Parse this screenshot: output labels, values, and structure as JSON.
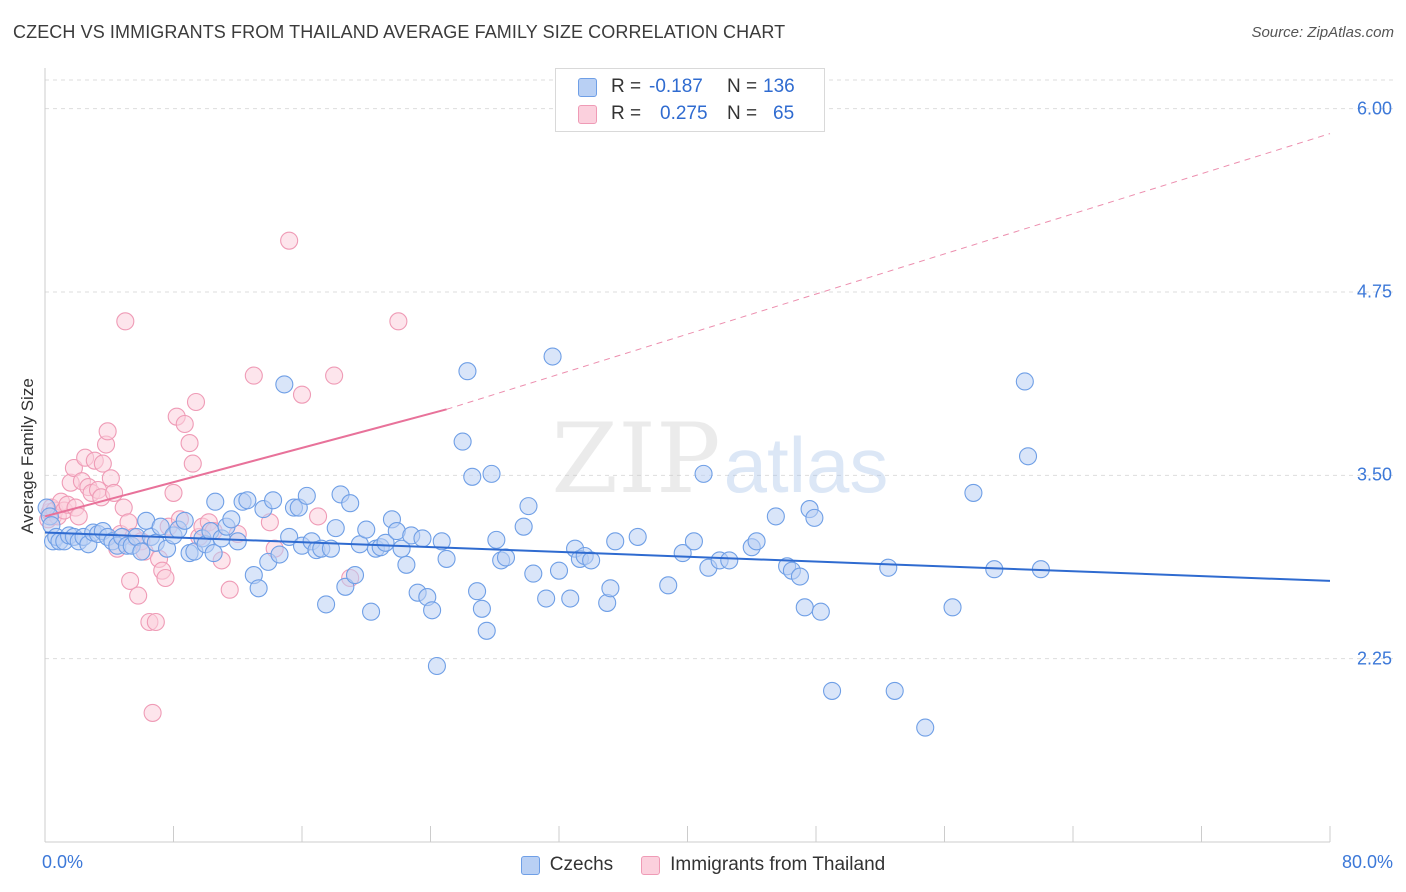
{
  "title": "CZECH VS IMMIGRANTS FROM THAILAND AVERAGE FAMILY SIZE CORRELATION CHART",
  "source": "Source: ZipAtlas.com",
  "watermark": {
    "zip": "ZIP",
    "atlas": "atlas"
  },
  "legend_top": {
    "r_label": "R =",
    "n_label": "N =",
    "czechs": {
      "r": "-0.187",
      "n": "136"
    },
    "thailand": {
      "r": "0.275",
      "n": "65"
    }
  },
  "legend_bottom": {
    "czechs": "Czechs",
    "thailand": "Immigrants from Thailand"
  },
  "x_axis": {
    "min_label": "0.0%",
    "max_label": "80.0%"
  },
  "y_axis_label": "Average Family Size",
  "colors": {
    "blue": "#6f9fe6",
    "blue_fill": "#b9d0f4",
    "pink": "#ef9bb6",
    "pink_fill": "#fbd0dd",
    "blue_line": "#2f6bd0",
    "pink_line": "#e8729a",
    "accent": "#3c78d8"
  },
  "chart_data": {
    "type": "scatter",
    "xlim": [
      0,
      80
    ],
    "ylim": [
      1.0,
      6.25
    ],
    "y_ticks": [
      2.25,
      3.5,
      4.75,
      6.0
    ],
    "y_tick_labels": [
      "2.25",
      "3.50",
      "4.75",
      "6.00"
    ],
    "grid": true,
    "series": [
      {
        "name": "Czechs",
        "trend": {
          "x": [
            0,
            80
          ],
          "y": [
            3.11,
            2.78
          ]
        },
        "points": [
          [
            0.1,
            3.28
          ],
          [
            0.3,
            3.22
          ],
          [
            0.4,
            3.16
          ],
          [
            0.5,
            3.05
          ],
          [
            0.7,
            3.08
          ],
          [
            0.9,
            3.05
          ],
          [
            1.2,
            3.05
          ],
          [
            1.5,
            3.09
          ],
          [
            1.8,
            3.08
          ],
          [
            2.1,
            3.05
          ],
          [
            2.4,
            3.08
          ],
          [
            2.7,
            3.03
          ],
          [
            3.0,
            3.11
          ],
          [
            3.3,
            3.1
          ],
          [
            3.6,
            3.12
          ],
          [
            3.9,
            3.08
          ],
          [
            4.2,
            3.05
          ],
          [
            4.5,
            3.02
          ],
          [
            4.8,
            3.08
          ],
          [
            5.1,
            3.02
          ],
          [
            5.4,
            3.02
          ],
          [
            5.7,
            3.08
          ],
          [
            6.0,
            2.98
          ],
          [
            6.3,
            3.19
          ],
          [
            6.6,
            3.08
          ],
          [
            6.9,
            3.04
          ],
          [
            7.2,
            3.15
          ],
          [
            7.6,
            3.0
          ],
          [
            8.0,
            3.09
          ],
          [
            8.3,
            3.13
          ],
          [
            8.7,
            3.19
          ],
          [
            9.0,
            2.97
          ],
          [
            9.3,
            2.98
          ],
          [
            9.8,
            3.07
          ],
          [
            10.0,
            3.03
          ],
          [
            10.3,
            3.12
          ],
          [
            10.5,
            2.97
          ],
          [
            10.6,
            3.32
          ],
          [
            11.0,
            3.07
          ],
          [
            11.3,
            3.15
          ],
          [
            11.6,
            3.2
          ],
          [
            12.0,
            3.05
          ],
          [
            12.3,
            3.32
          ],
          [
            12.6,
            3.33
          ],
          [
            13.0,
            2.82
          ],
          [
            13.3,
            2.73
          ],
          [
            13.6,
            3.27
          ],
          [
            13.9,
            2.91
          ],
          [
            14.2,
            3.33
          ],
          [
            14.6,
            2.96
          ],
          [
            14.9,
            4.12
          ],
          [
            15.2,
            3.08
          ],
          [
            15.5,
            3.28
          ],
          [
            15.8,
            3.28
          ],
          [
            16.0,
            3.02
          ],
          [
            16.3,
            3.36
          ],
          [
            16.6,
            3.05
          ],
          [
            16.9,
            2.99
          ],
          [
            17.2,
            3.0
          ],
          [
            17.5,
            2.62
          ],
          [
            17.8,
            3.0
          ],
          [
            18.1,
            3.14
          ],
          [
            18.4,
            3.37
          ],
          [
            18.7,
            2.74
          ],
          [
            19.0,
            3.31
          ],
          [
            19.3,
            2.82
          ],
          [
            19.6,
            3.03
          ],
          [
            20.0,
            3.13
          ],
          [
            20.3,
            2.57
          ],
          [
            20.6,
            3.0
          ],
          [
            20.9,
            3.01
          ],
          [
            21.2,
            3.04
          ],
          [
            21.6,
            3.2
          ],
          [
            21.9,
            3.12
          ],
          [
            22.2,
            3.0
          ],
          [
            22.5,
            2.89
          ],
          [
            22.8,
            3.09
          ],
          [
            23.2,
            2.7
          ],
          [
            23.5,
            3.07
          ],
          [
            23.8,
            2.67
          ],
          [
            24.1,
            2.58
          ],
          [
            24.4,
            2.2
          ],
          [
            24.7,
            3.05
          ],
          [
            25.0,
            2.93
          ],
          [
            26.0,
            3.73
          ],
          [
            26.3,
            4.21
          ],
          [
            26.6,
            3.49
          ],
          [
            26.9,
            2.71
          ],
          [
            27.2,
            2.59
          ],
          [
            27.5,
            2.44
          ],
          [
            27.8,
            3.51
          ],
          [
            28.1,
            3.06
          ],
          [
            28.4,
            2.92
          ],
          [
            28.7,
            2.94
          ],
          [
            29.8,
            3.15
          ],
          [
            30.1,
            3.29
          ],
          [
            30.4,
            2.83
          ],
          [
            31.2,
            2.66
          ],
          [
            31.6,
            4.31
          ],
          [
            32.0,
            2.85
          ],
          [
            32.7,
            2.66
          ],
          [
            33.0,
            3.0
          ],
          [
            33.3,
            2.93
          ],
          [
            33.6,
            2.95
          ],
          [
            34.0,
            2.92
          ],
          [
            35.0,
            2.63
          ],
          [
            35.2,
            2.73
          ],
          [
            35.5,
            3.05
          ],
          [
            36.9,
            3.08
          ],
          [
            38.8,
            2.75
          ],
          [
            39.7,
            2.97
          ],
          [
            40.4,
            3.05
          ],
          [
            41.0,
            3.51
          ],
          [
            41.3,
            2.87
          ],
          [
            42.0,
            2.92
          ],
          [
            42.6,
            2.92
          ],
          [
            44.0,
            3.01
          ],
          [
            44.3,
            3.05
          ],
          [
            45.5,
            3.22
          ],
          [
            46.2,
            2.88
          ],
          [
            46.5,
            2.85
          ],
          [
            47.0,
            2.81
          ],
          [
            47.3,
            2.6
          ],
          [
            47.6,
            3.27
          ],
          [
            47.9,
            3.21
          ],
          [
            48.3,
            2.57
          ],
          [
            49.0,
            2.03
          ],
          [
            52.5,
            2.87
          ],
          [
            52.9,
            2.03
          ],
          [
            54.8,
            1.78
          ],
          [
            56.5,
            2.6
          ],
          [
            57.8,
            3.38
          ],
          [
            59.1,
            2.86
          ],
          [
            61.0,
            4.14
          ],
          [
            61.2,
            3.63
          ],
          [
            62.0,
            2.86
          ]
        ]
      },
      {
        "name": "Immigrants from Thailand",
        "trend": {
          "x": [
            0,
            25
          ],
          "y": [
            3.22,
            3.95
          ],
          "dashed_to": {
            "x": 80,
            "y": 5.83
          }
        },
        "points": [
          [
            0.2,
            3.2
          ],
          [
            0.3,
            3.25
          ],
          [
            0.4,
            3.28
          ],
          [
            0.5,
            3.22
          ],
          [
            0.6,
            3.26
          ],
          [
            0.8,
            3.22
          ],
          [
            1.0,
            3.32
          ],
          [
            1.2,
            3.26
          ],
          [
            1.4,
            3.3
          ],
          [
            1.6,
            3.45
          ],
          [
            1.8,
            3.55
          ],
          [
            1.9,
            3.28
          ],
          [
            2.1,
            3.22
          ],
          [
            2.3,
            3.46
          ],
          [
            2.5,
            3.62
          ],
          [
            2.7,
            3.42
          ],
          [
            2.9,
            3.38
          ],
          [
            3.1,
            3.6
          ],
          [
            3.3,
            3.4
          ],
          [
            3.5,
            3.35
          ],
          [
            3.6,
            3.58
          ],
          [
            3.8,
            3.71
          ],
          [
            3.9,
            3.8
          ],
          [
            4.1,
            3.48
          ],
          [
            4.3,
            3.38
          ],
          [
            4.5,
            3.0
          ],
          [
            4.7,
            3.1
          ],
          [
            4.9,
            3.28
          ],
          [
            5.0,
            4.55
          ],
          [
            5.2,
            3.18
          ],
          [
            5.3,
            2.78
          ],
          [
            5.5,
            3.08
          ],
          [
            5.8,
            2.68
          ],
          [
            6.0,
            3.05
          ],
          [
            6.2,
            2.98
          ],
          [
            6.5,
            2.5
          ],
          [
            6.7,
            1.88
          ],
          [
            6.9,
            2.5
          ],
          [
            7.1,
            2.93
          ],
          [
            7.3,
            2.85
          ],
          [
            7.5,
            2.8
          ],
          [
            7.7,
            3.15
          ],
          [
            8.0,
            3.38
          ],
          [
            8.2,
            3.9
          ],
          [
            8.4,
            3.2
          ],
          [
            8.7,
            3.85
          ],
          [
            9.0,
            3.72
          ],
          [
            9.2,
            3.58
          ],
          [
            9.4,
            4.0
          ],
          [
            9.6,
            3.08
          ],
          [
            9.8,
            3.15
          ],
          [
            10.2,
            3.18
          ],
          [
            10.5,
            3.12
          ],
          [
            11.0,
            2.92
          ],
          [
            11.5,
            2.72
          ],
          [
            12.0,
            3.1
          ],
          [
            13.0,
            4.18
          ],
          [
            14.0,
            3.18
          ],
          [
            14.3,
            3.0
          ],
          [
            15.2,
            5.1
          ],
          [
            16.0,
            4.05
          ],
          [
            17.0,
            3.22
          ],
          [
            18.0,
            4.18
          ],
          [
            19.0,
            2.8
          ],
          [
            22.0,
            4.55
          ]
        ]
      }
    ]
  }
}
